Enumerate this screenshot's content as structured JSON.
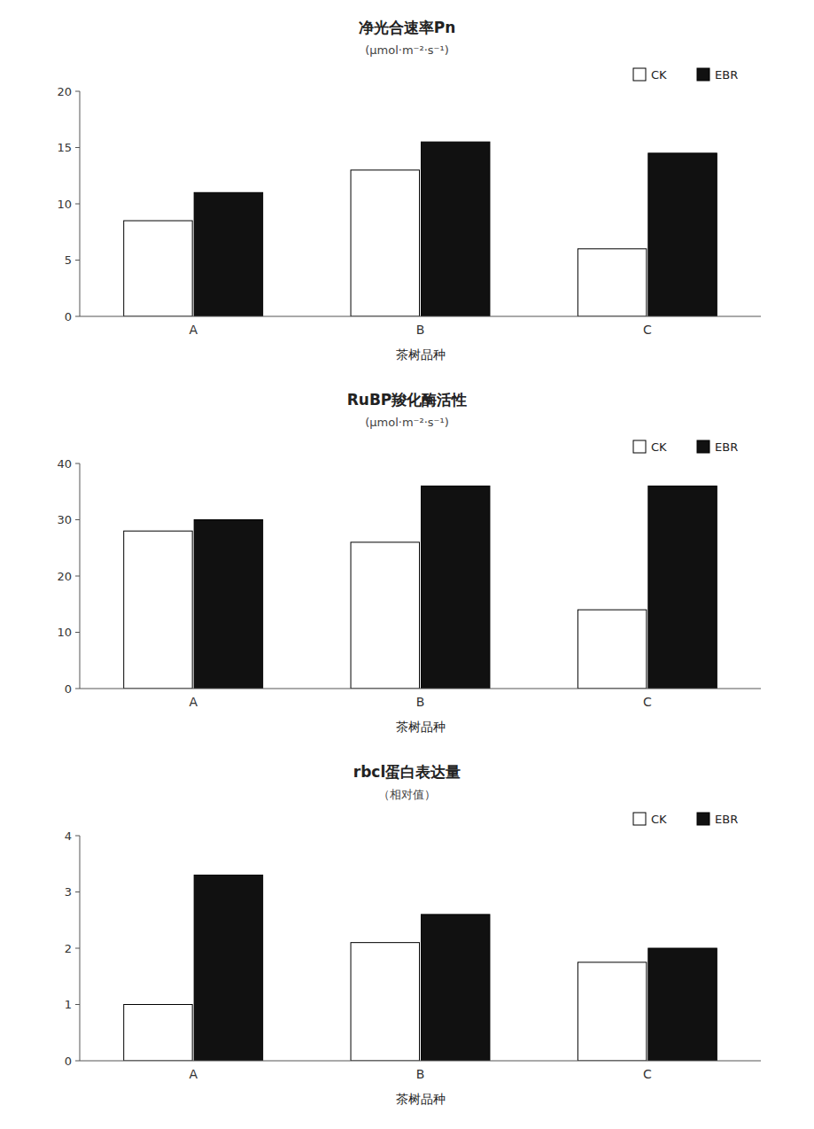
{
  "chart_data": [
    {
      "type": "bar",
      "title": "净光合速率Pn",
      "subtitle": "(μmol·m⁻²·s⁻¹)",
      "xlabel": "茶树品种",
      "categories": [
        "A",
        "B",
        "C"
      ],
      "series": [
        {
          "name": "CK",
          "color": "#ffffff",
          "values": [
            8.5,
            13.0,
            6.0
          ]
        },
        {
          "name": "EBR",
          "color": "#111111",
          "values": [
            11.0,
            15.5,
            14.5
          ]
        }
      ],
      "ylim": [
        0,
        20
      ],
      "yticks": [
        0,
        5,
        10,
        15,
        20
      ],
      "grid": false,
      "legend": "upper right"
    },
    {
      "type": "bar",
      "title": "RuBP羧化酶活性",
      "subtitle": "(μmol·m⁻²·s⁻¹)",
      "xlabel": "茶树品种",
      "categories": [
        "A",
        "B",
        "C"
      ],
      "series": [
        {
          "name": "CK",
          "color": "#ffffff",
          "values": [
            28.0,
            26.0,
            14.0
          ]
        },
        {
          "name": "EBR",
          "color": "#111111",
          "values": [
            30.0,
            36.0,
            36.0
          ]
        }
      ],
      "ylim": [
        0,
        40
      ],
      "yticks": [
        0,
        10,
        20,
        30,
        40
      ],
      "grid": false,
      "legend": "upper right"
    },
    {
      "type": "bar",
      "title": "rbcl蛋白表达量",
      "subtitle": "（相对值）",
      "xlabel": "茶树品种",
      "categories": [
        "A",
        "B",
        "C"
      ],
      "series": [
        {
          "name": "CK",
          "color": "#ffffff",
          "values": [
            1.0,
            2.1,
            1.75
          ]
        },
        {
          "name": "EBR",
          "color": "#111111",
          "values": [
            3.3,
            2.6,
            2.0
          ]
        }
      ],
      "ylim": [
        0,
        4
      ],
      "yticks": [
        0,
        1,
        2,
        3,
        4
      ],
      "grid": false,
      "legend": "upper right"
    }
  ]
}
